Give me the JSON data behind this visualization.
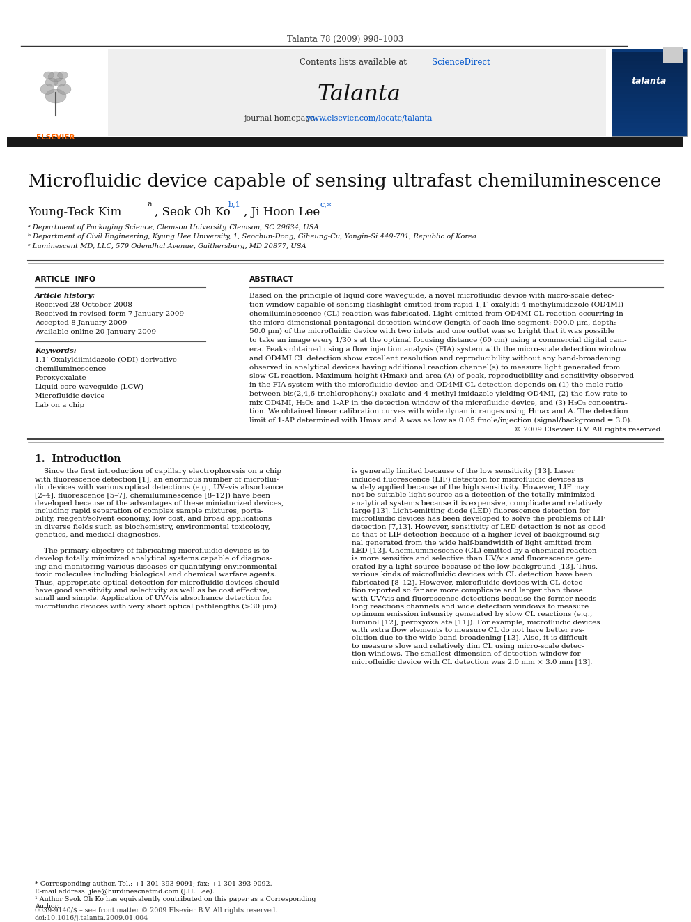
{
  "page_title": "Talanta 78 (2009) 998–1003",
  "journal_name": "Talanta",
  "contents_line": "Contents lists available at ",
  "science_direct": "ScienceDirect",
  "journal_homepage_prefix": "journal homepage: ",
  "journal_homepage_link": "www.elsevier.com/locate/talanta",
  "article_title": "Microfluidic device capable of sensing ultrafast chemiluminescence",
  "author1": "Young-Teck Kim",
  "author1_sup": "a",
  "author2": ", Seok Oh Ko",
  "author2_sup": "b,1",
  "author3": ", Ji Hoon Lee",
  "author3_sup": "c,∗",
  "affil_a": "ᵃ Department of Packaging Science, Clemson University, Clemson, SC 29634, USA",
  "affil_b": "ᵇ Department of Civil Engineering, Kyung Hee University, 1, Seochun-Dong, Giheung-Cu, Yongin-Si 449-701, Republic of Korea",
  "affil_c": "ᶜ Luminescent MD, LLC, 579 Odendhal Avenue, Gaithersburg, MD 20877, USA",
  "article_info_header": "ARTICLE  INFO",
  "abstract_header": "ABSTRACT",
  "article_history_label": "Article history:",
  "received1": "Received 28 October 2008",
  "received2": "Received in revised form 7 January 2009",
  "accepted": "Accepted 8 January 2009",
  "available": "Available online 20 January 2009",
  "keywords_label": "Keywords:",
  "keyword1": "1,1′-Oxalyldiimidazole (ODI) derivative",
  "keyword2": "chemiluminescence",
  "keyword3": "Peroxyoxalate",
  "keyword4": "Liquid core waveguide (LCW)",
  "keyword5": "Microfluidic device",
  "keyword6": "Lab on a chip",
  "copyright": "© 2009 Elsevier B.V. All rights reserved.",
  "intro_header": "1.  Introduction",
  "footnote_corr": "* Corresponding author. Tel.: +1 301 393 9091; fax: +1 301 393 9092.",
  "footnote_email": "E-mail address: jlee@hurdinescnetmd.com (J.H. Lee).",
  "footnote_1": "¹ Author Seok Oh Ko has equivalently contributed on this paper as a Corresponding",
  "footnote_1b": "Author.",
  "issn_line": "0039-9140/$ – see front matter © 2009 Elsevier B.V. All rights reserved.",
  "doi_line": "doi:10.1016/j.talanta.2009.01.004",
  "bg_color": "#ffffff",
  "dark_bar": "#1a1a1a",
  "blue_link": "#0055cc",
  "elsevier_orange": "#ff6600",
  "abstract_lines": [
    "Based on the principle of liquid core waveguide, a novel microfluidic device with micro-scale detec-",
    "tion window capable of sensing flashlight emitted from rapid 1,1′-oxalyldi-4-methylimidazole (OD4MI)",
    "chemiluminescence (CL) reaction was fabricated. Light emitted from OD4MI CL reaction occurring in",
    "the micro-dimensional pentagonal detection window (length of each line segment: 900.0 μm, depth:",
    "50.0 μm) of the microfluidic device with two inlets and one outlet was so bright that it was possible",
    "to take an image every 1/30 s at the optimal focusing distance (60 cm) using a commercial digital cam-",
    "era. Peaks obtained using a flow injection analysis (FIA) system with the micro-scale detection window",
    "and OD4MI CL detection show excellent resolution and reproducibility without any band-broadening",
    "observed in analytical devices having additional reaction channel(s) to measure light generated from",
    "slow CL reaction. Maximum height (Hmax) and area (A) of peak, reproducibility and sensitivity observed",
    "in the FIA system with the microfluidic device and OD4MI CL detection depends on (1) the mole ratio",
    "between bis(2,4,6-trichlorophenyl) oxalate and 4-methyl imidazole yielding OD4MI, (2) the flow rate to",
    "mix OD4MI, H₂O₂ and 1-AP in the detection window of the microfluidic device, and (3) H₂O₂ concentra-",
    "tion. We obtained linear calibration curves with wide dynamic ranges using Hmax and A. The detection",
    "limit of 1-AP determined with Hmax and A was as low as 0.05 fmole/injection (signal/background = 3.0)."
  ],
  "left_col_lines": [
    "    Since the first introduction of capillary electrophoresis on a chip",
    "with fluorescence detection [1], an enormous number of microflui-",
    "dic devices with various optical detections (e.g., UV–vis absorbance",
    "[2–4], fluorescence [5–7], chemiluminescence [8–12]) have been",
    "developed because of the advantages of these miniaturized devices,",
    "including rapid separation of complex sample mixtures, porta-",
    "bility, reagent/solvent economy, low cost, and broad applications",
    "in diverse fields such as biochemistry, environmental toxicology,",
    "genetics, and medical diagnostics.",
    "",
    "    The primary objective of fabricating microfluidic devices is to",
    "develop totally minimized analytical systems capable of diagnos-",
    "ing and monitoring various diseases or quantifying environmental",
    "toxic molecules including biological and chemical warfare agents.",
    "Thus, appropriate optical detection for microfluidic devices should",
    "have good sensitivity and selectivity as well as be cost effective,",
    "small and simple. Application of UV/vis absorbance detection for",
    "microfluidic devices with very short optical pathlengths (>30 μm)"
  ],
  "right_col_lines": [
    "is generally limited because of the low sensitivity [13]. Laser",
    "induced fluorescence (LIF) detection for microfluidic devices is",
    "widely applied because of the high sensitivity. However, LIF may",
    "not be suitable light source as a detection of the totally minimized",
    "analytical systems because it is expensive, complicate and relatively",
    "large [13]. Light-emitting diode (LED) fluorescence detection for",
    "microfluidic devices has been developed to solve the problems of LIF",
    "detection [7,13]. However, sensitivity of LED detection is not as good",
    "as that of LIF detection because of a higher level of background sig-",
    "nal generated from the wide half-bandwidth of light emitted from",
    "LED [13]. Chemiluminescence (CL) emitted by a chemical reaction",
    "is more sensitive and selective than UV/vis and fluorescence gen-",
    "erated by a light source because of the low background [13]. Thus,",
    "various kinds of microfluidic devices with CL detection have been",
    "fabricated [8–12]. However, microfluidic devices with CL detec-",
    "tion reported so far are more complicate and larger than those",
    "with UV/vis and fluorescence detections because the former needs",
    "long reactions channels and wide detection windows to measure",
    "optimum emission intensity generated by slow CL reactions (e.g.,",
    "luminol [12], peroxyoxalate [11]). For example, microfluidic devices",
    "with extra flow elements to measure CL do not have better res-",
    "olution due to the wide band-broadening [13]. Also, it is difficult",
    "to measure slow and relatively dim CL using micro-scale detec-",
    "tion windows. The smallest dimension of detection window for",
    "microfluidic device with CL detection was 2.0 mm × 3.0 mm [13]."
  ]
}
